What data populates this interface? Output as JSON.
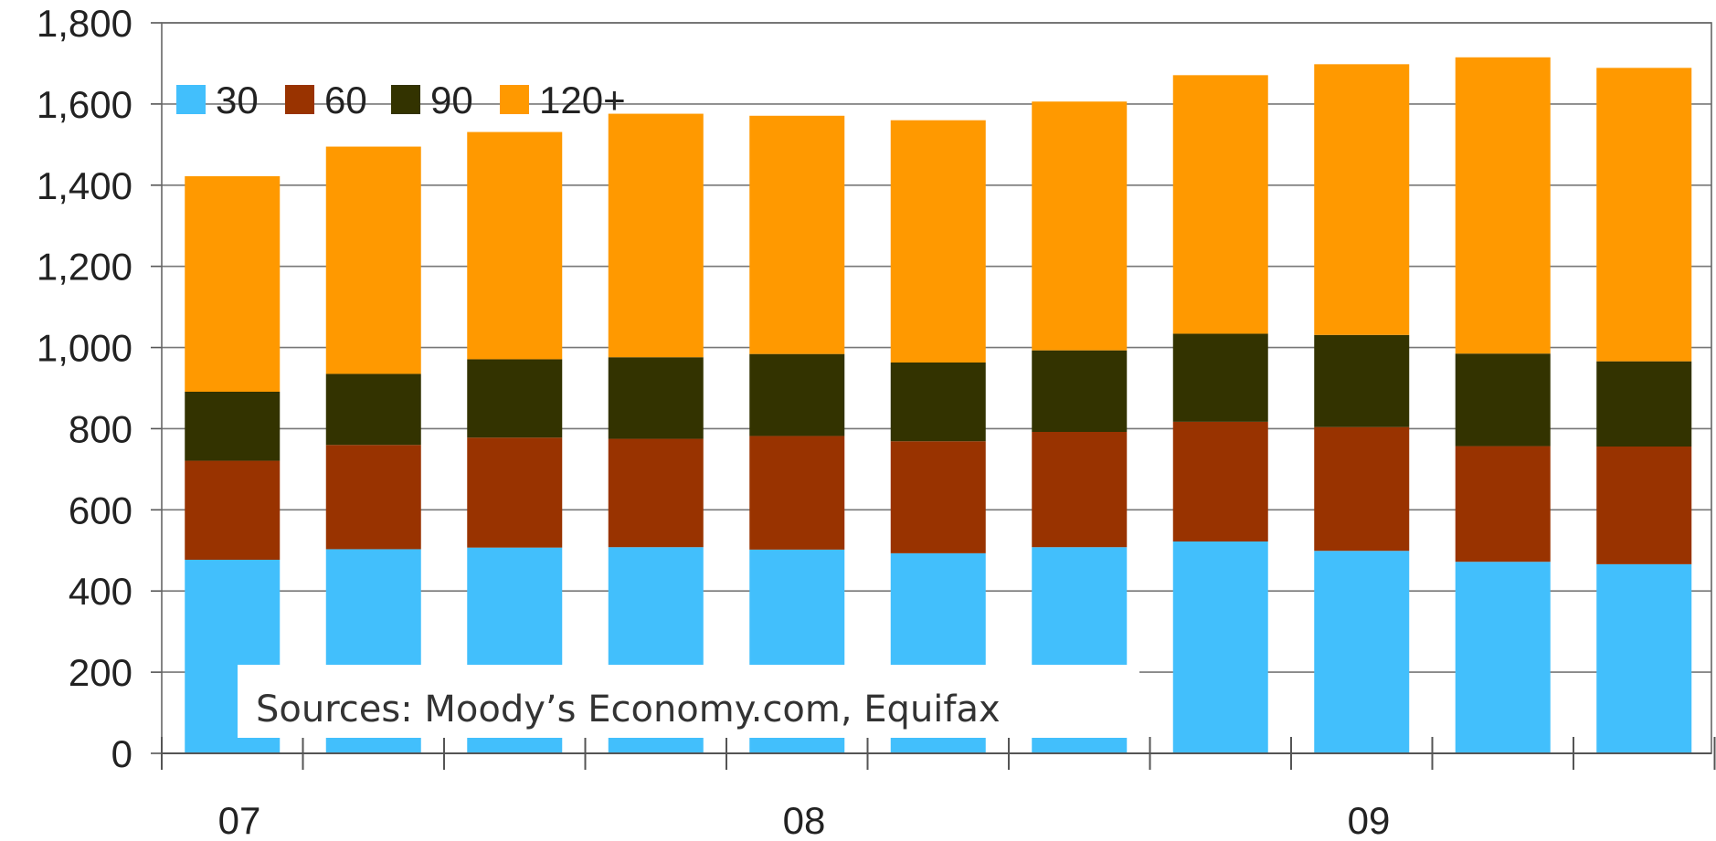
{
  "chart_data": {
    "type": "bar",
    "stacked": true,
    "x_group_labels": [
      "07",
      "08",
      "09"
    ],
    "bars_per_group": 4,
    "ylim": [
      0,
      1800
    ],
    "yticks": [
      0,
      200,
      400,
      600,
      800,
      1000,
      1200,
      1400,
      1600,
      1800
    ],
    "ytick_labels": [
      "0",
      "200",
      "400",
      "600",
      "800",
      "1,000",
      "1,200",
      "1,400",
      "1,600",
      "1,800"
    ],
    "grid": true,
    "legend_position": "top-left",
    "series": [
      {
        "name": "30",
        "color": "#42BFFC",
        "values": [
          477,
          503,
          507,
          508,
          502,
          493,
          508,
          522,
          499,
          472,
          466
        ]
      },
      {
        "name": "60",
        "color": "#993300",
        "values": [
          244,
          257,
          271,
          267,
          280,
          276,
          284,
          295,
          305,
          285,
          290
        ]
      },
      {
        "name": "90",
        "color": "#333300",
        "values": [
          170,
          175,
          193,
          201,
          202,
          194,
          201,
          217,
          227,
          228,
          210
        ]
      },
      {
        "name": "120+",
        "color": "#FF9900",
        "values": [
          531,
          560,
          560,
          600,
          587,
          597,
          613,
          637,
          667,
          730,
          723
        ]
      }
    ],
    "annotation": "Sources: Moody’s Economy.com, Equifax"
  }
}
